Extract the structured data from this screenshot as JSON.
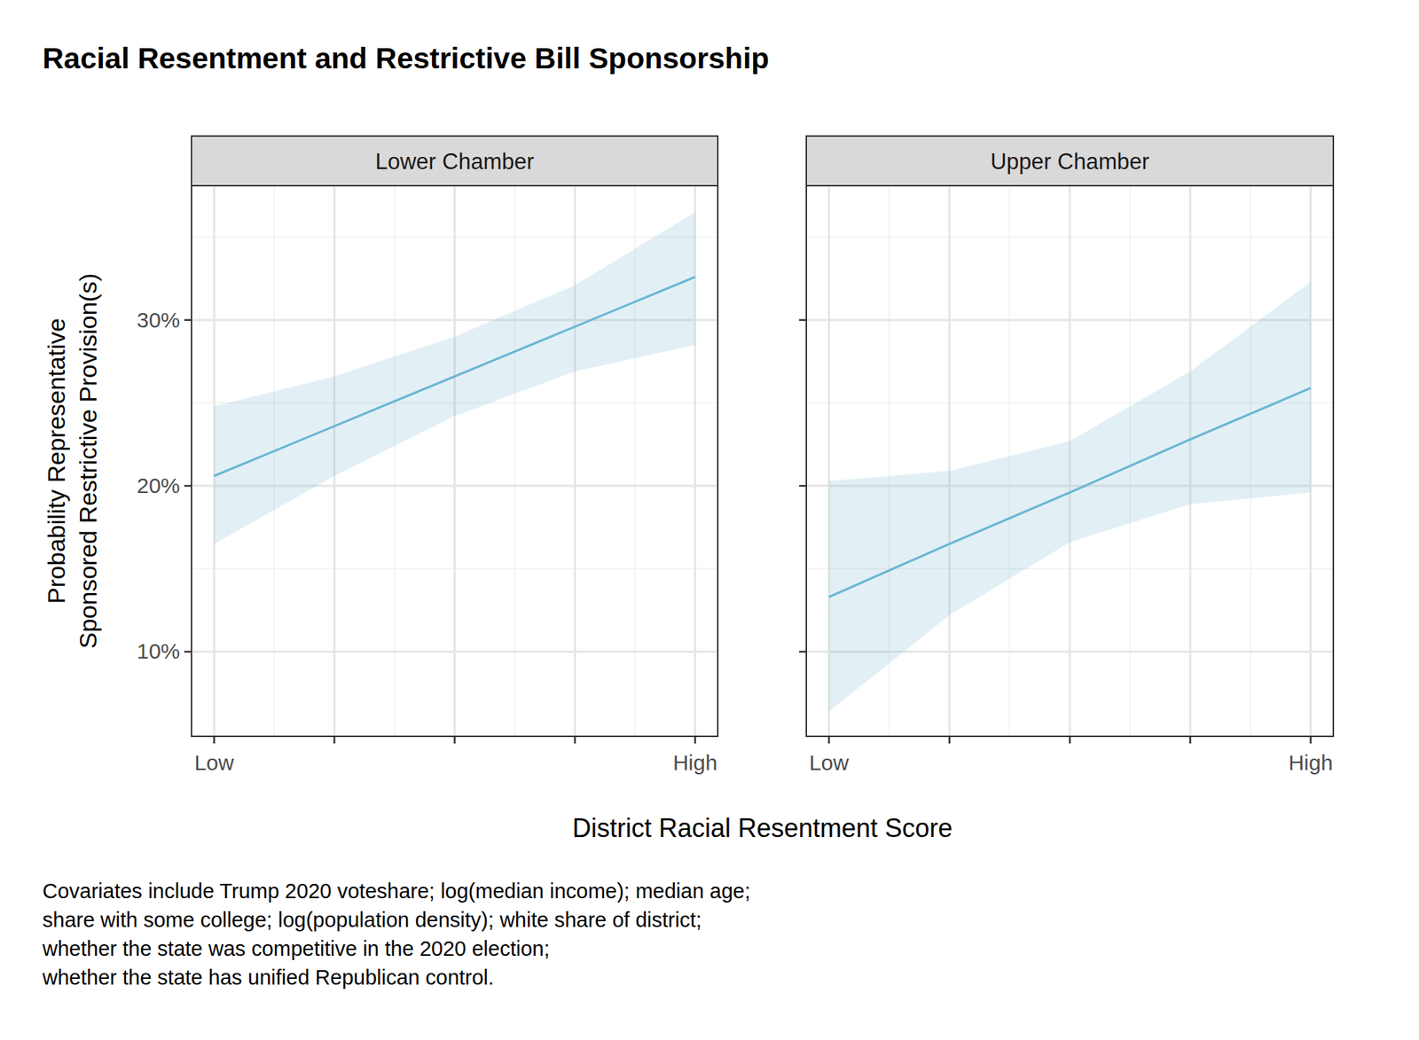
{
  "title": "Racial Resentment and Restrictive Bill Sponsorship",
  "x_label": "District Racial Resentment Score",
  "y_label": [
    "Probability Representative",
    "Sponsored Restrictive Provision(s)"
  ],
  "caption": [
    "Covariates include Trump 2020 voteshare; log(median income); median age;",
    "share with some college; log(population density); white share of district;",
    "whether the state was competitive in the 2020 election;",
    "whether the state has unified Republican control."
  ],
  "chart_data": [
    {
      "type": "line",
      "title": "Lower Chamber",
      "categories": [
        "Low",
        null,
        null,
        null,
        "High"
      ],
      "values": [
        20.6,
        23.6,
        26.6,
        29.6,
        32.6
      ],
      "lower": [
        16.5,
        20.6,
        24.2,
        26.9,
        28.5
      ],
      "upper": [
        24.8,
        26.6,
        29.0,
        32.1,
        36.5
      ],
      "color": "#6cb6d4",
      "ylim": [
        4.9,
        38.1
      ],
      "yticks": [
        {
          "value": 10,
          "label": "10%"
        },
        {
          "value": 20,
          "label": "20%"
        },
        {
          "value": 30,
          "label": "30%"
        }
      ],
      "grid": true
    },
    {
      "type": "line",
      "title": "Upper Chamber",
      "categories": [
        "Low",
        null,
        null,
        null,
        "High"
      ],
      "values": [
        13.3,
        16.5,
        19.6,
        22.8,
        25.9
      ],
      "lower": [
        6.4,
        12.2,
        16.6,
        18.9,
        19.6
      ],
      "upper": [
        20.3,
        20.9,
        22.7,
        26.9,
        32.3
      ],
      "color": "#6cb6d4",
      "ylim": [
        4.9,
        38.1
      ],
      "yticks": [
        {
          "value": 10,
          "label": "10%"
        },
        {
          "value": 20,
          "label": "20%"
        },
        {
          "value": 30,
          "label": "30%"
        }
      ],
      "grid": true,
      "tick_labels": "x"
    }
  ]
}
